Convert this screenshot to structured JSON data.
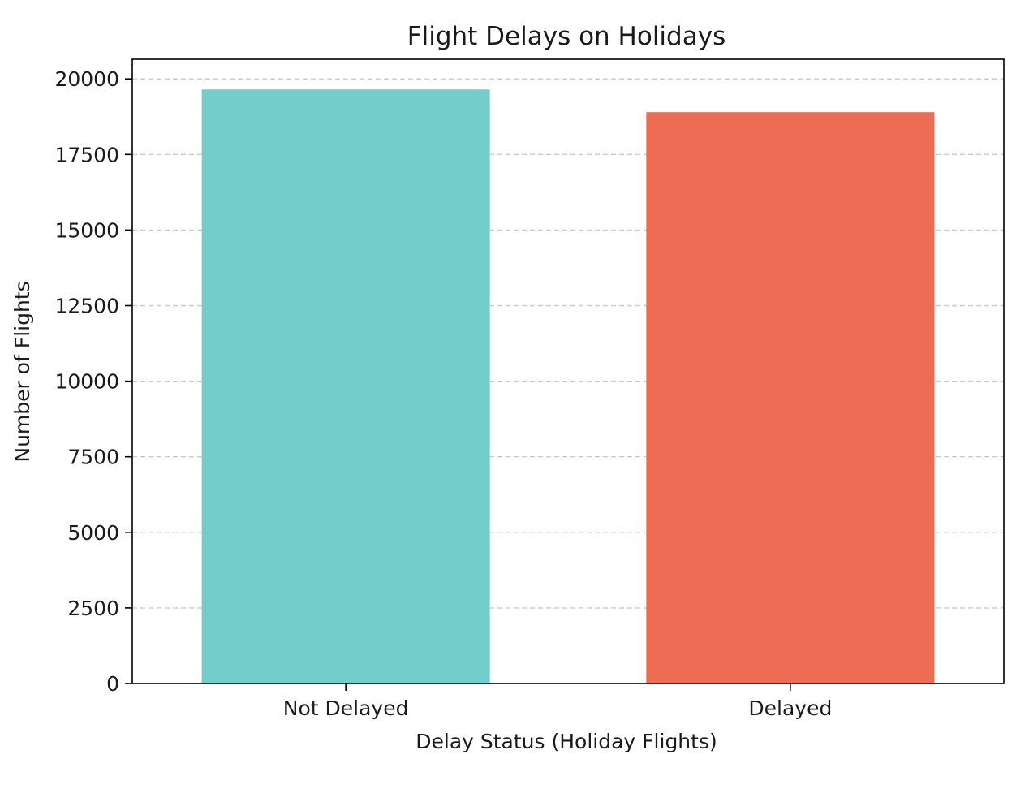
{
  "chart_data": {
    "type": "bar",
    "title": "Flight Delays on Holidays",
    "xlabel": "Delay Status (Holiday Flights)",
    "ylabel": "Number of Flights",
    "categories": [
      "Not Delayed",
      "Delayed"
    ],
    "values": [
      19650,
      18900
    ],
    "colors": [
      "#72CECB",
      "#EC6D53"
    ],
    "ylim": [
      0,
      20650
    ],
    "yticks": [
      0,
      2500,
      5000,
      7500,
      10000,
      12500,
      15000,
      17500,
      20000
    ],
    "grid": {
      "axis": "y",
      "style": "dashed",
      "color": "#cccccc"
    },
    "legend": "none"
  }
}
